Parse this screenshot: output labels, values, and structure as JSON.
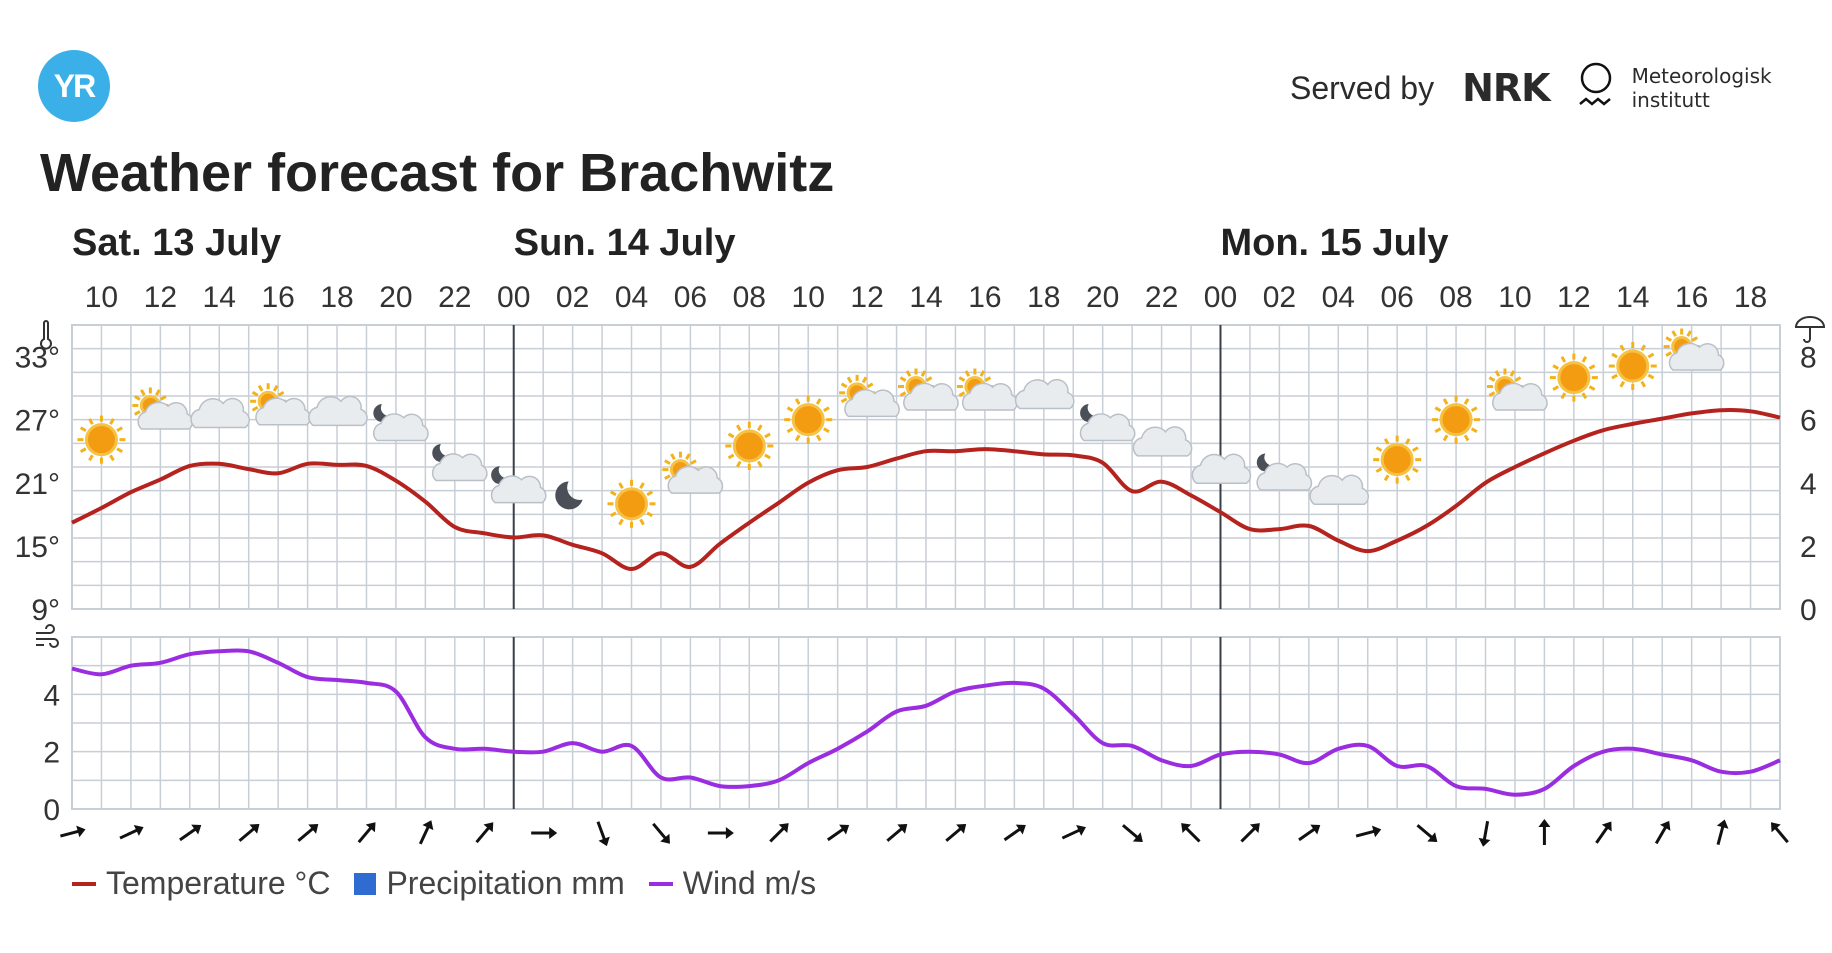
{
  "brand": {
    "logo_text": "YR",
    "served_by": "Served by",
    "nrk_logo_text": "NRK",
    "met_line1": "Meteorologisk",
    "met_line2": "institutt"
  },
  "title": "Weather forecast for Brachwitz",
  "colors": {
    "temperature": "#b5231f",
    "precipitation": "#2f6bd0",
    "wind": "#9b2de0",
    "grid": "#c8ced6",
    "day_line": "#3a3f4a",
    "logo": "#3bb0e8"
  },
  "days": [
    {
      "label": "Sat. 13 July",
      "start_hour": 9
    },
    {
      "label": "Sun. 14 July",
      "start_hour": 24
    },
    {
      "label": "Mon. 15 July",
      "start_hour": 48
    }
  ],
  "legend": [
    {
      "label": "Temperature °C",
      "series": "temperature"
    },
    {
      "label": "Precipitation mm",
      "series": "precipitation"
    },
    {
      "label": "Wind m/s",
      "series": "wind"
    }
  ],
  "chart_data": [
    {
      "type": "line",
      "x_unit": "hours after Sat. 13 July 00:00",
      "x_range": [
        9,
        67
      ],
      "x_tick_labels": [
        "10",
        "12",
        "14",
        "16",
        "18",
        "20",
        "22",
        "00",
        "02",
        "04",
        "06",
        "08",
        "10",
        "12",
        "14",
        "16",
        "18",
        "20",
        "22",
        "00",
        "02",
        "04",
        "06",
        "08",
        "10",
        "12",
        "14",
        "16",
        "18"
      ],
      "x_tick_hours": [
        10,
        12,
        14,
        16,
        18,
        20,
        22,
        24,
        26,
        28,
        30,
        32,
        34,
        36,
        38,
        40,
        42,
        44,
        46,
        48,
        50,
        52,
        54,
        56,
        58,
        60,
        62,
        64,
        66
      ],
      "y_left": {
        "unit": "°C",
        "ticks": [
          "33°",
          "27°",
          "21°",
          "15°",
          "9°"
        ],
        "tick_values": [
          33,
          27,
          21,
          15,
          9
        ],
        "range": [
          9,
          36
        ]
      },
      "y_right": {
        "unit": "mm",
        "ticks": [
          "8",
          "6",
          "4",
          "2",
          "0"
        ],
        "tick_values": [
          8,
          6,
          4,
          2,
          0
        ],
        "range": [
          0,
          9
        ]
      },
      "series": [
        {
          "name": "Temperature °C",
          "axis": "left",
          "x": [
            9,
            10,
            11,
            12,
            13,
            14,
            15,
            16,
            17,
            18,
            19,
            20,
            21,
            22,
            23,
            24,
            25,
            26,
            27,
            28,
            29,
            30,
            31,
            32,
            33,
            34,
            35,
            36,
            37,
            38,
            39,
            40,
            41,
            42,
            43,
            44,
            45,
            46,
            47,
            48,
            49,
            50,
            51,
            52,
            53,
            54,
            55,
            56,
            57,
            58,
            59,
            60,
            61,
            62,
            63,
            64,
            65,
            66,
            67
          ],
          "y": [
            17.2,
            18.6,
            20.1,
            21.3,
            22.6,
            22.8,
            22.3,
            21.9,
            22.8,
            22.7,
            22.6,
            21.2,
            19.2,
            16.8,
            16.2,
            15.8,
            16.0,
            15.1,
            14.3,
            12.8,
            14.3,
            13.0,
            15.2,
            17.2,
            19.1,
            21.0,
            22.2,
            22.5,
            23.3,
            24.0,
            24.0,
            24.2,
            24.0,
            23.7,
            23.6,
            22.9,
            20.2,
            21.1,
            19.8,
            18.2,
            16.6,
            16.6,
            16.9,
            15.5,
            14.5,
            15.5,
            16.9,
            18.8,
            21.0,
            22.5,
            23.8,
            25.0,
            26.0,
            26.6,
            27.1,
            27.6,
            27.9,
            27.8,
            27.2
          ]
        },
        {
          "name": "Precipitation mm",
          "axis": "right",
          "x": [],
          "y": []
        }
      ],
      "weather_symbols": [
        {
          "hour": 10,
          "icon": "clear-sky-day-icon",
          "temp_pos": 25.1
        },
        {
          "hour": 12,
          "icon": "partly-cloudy-day-icon",
          "temp_pos": 27.4
        },
        {
          "hour": 14,
          "icon": "cloudy-icon",
          "temp_pos": 27.4
        },
        {
          "hour": 16,
          "icon": "partly-cloudy-day-icon",
          "temp_pos": 27.8
        },
        {
          "hour": 18,
          "icon": "cloudy-icon",
          "temp_pos": 27.6
        },
        {
          "hour": 20,
          "icon": "partly-cloudy-night-icon",
          "temp_pos": 26.3
        },
        {
          "hour": 22,
          "icon": "partly-cloudy-night-icon",
          "temp_pos": 22.5
        },
        {
          "hour": 24,
          "icon": "partly-cloudy-night-icon",
          "temp_pos": 20.4
        },
        {
          "hour": 26,
          "icon": "clear-sky-night-icon",
          "temp_pos": 19.8
        },
        {
          "hour": 28,
          "icon": "clear-sky-day-icon",
          "temp_pos": 19.0
        },
        {
          "hour": 30,
          "icon": "partly-cloudy-day-icon",
          "temp_pos": 21.3
        },
        {
          "hour": 32,
          "icon": "clear-sky-day-icon",
          "temp_pos": 24.5
        },
        {
          "hour": 34,
          "icon": "clear-sky-day-icon",
          "temp_pos": 27.0
        },
        {
          "hour": 36,
          "icon": "partly-cloudy-day-icon",
          "temp_pos": 28.6
        },
        {
          "hour": 38,
          "icon": "partly-cloudy-day-icon",
          "temp_pos": 29.2
        },
        {
          "hour": 40,
          "icon": "partly-cloudy-day-icon",
          "temp_pos": 29.2
        },
        {
          "hour": 42,
          "icon": "cloudy-icon",
          "temp_pos": 29.2
        },
        {
          "hour": 44,
          "icon": "partly-cloudy-night-icon",
          "temp_pos": 26.3
        },
        {
          "hour": 46,
          "icon": "cloudy-icon",
          "temp_pos": 24.7
        },
        {
          "hour": 48,
          "icon": "cloudy-icon",
          "temp_pos": 22.1
        },
        {
          "hour": 50,
          "icon": "partly-cloudy-night-icon",
          "temp_pos": 21.6
        },
        {
          "hour": 52,
          "icon": "cloudy-icon",
          "temp_pos": 20.1
        },
        {
          "hour": 54,
          "icon": "clear-sky-day-icon",
          "temp_pos": 23.2
        },
        {
          "hour": 56,
          "icon": "clear-sky-day-icon",
          "temp_pos": 27.0
        },
        {
          "hour": 58,
          "icon": "partly-cloudy-day-icon",
          "temp_pos": 29.2
        },
        {
          "hour": 60,
          "icon": "clear-sky-day-icon",
          "temp_pos": 31.0
        },
        {
          "hour": 62,
          "icon": "clear-sky-day-icon",
          "temp_pos": 32.1
        },
        {
          "hour": 64,
          "icon": "partly-cloudy-day-icon",
          "temp_pos": 33.0
        }
      ],
      "grid": true
    },
    {
      "type": "line",
      "x_unit": "hours after Sat. 13 July 00:00",
      "x_range": [
        9,
        67
      ],
      "y_left": {
        "unit": "m/s",
        "ticks": [
          "4",
          "2",
          "0"
        ],
        "tick_values": [
          4,
          2,
          0
        ],
        "range": [
          0,
          6
        ]
      },
      "series": [
        {
          "name": "Wind m/s",
          "x": [
            9,
            10,
            11,
            12,
            13,
            14,
            15,
            16,
            17,
            18,
            19,
            20,
            21,
            22,
            23,
            24,
            25,
            26,
            27,
            28,
            29,
            30,
            31,
            32,
            33,
            34,
            35,
            36,
            37,
            38,
            39,
            40,
            41,
            42,
            43,
            44,
            45,
            46,
            47,
            48,
            49,
            50,
            51,
            52,
            53,
            54,
            55,
            56,
            57,
            58,
            59,
            60,
            61,
            62,
            63,
            64,
            65,
            66,
            67
          ],
          "y": [
            4.9,
            4.7,
            5.0,
            5.1,
            5.4,
            5.5,
            5.5,
            5.1,
            4.6,
            4.5,
            4.4,
            4.1,
            2.5,
            2.1,
            2.1,
            2.0,
            2.0,
            2.3,
            2.0,
            2.2,
            1.1,
            1.1,
            0.8,
            0.8,
            1.0,
            1.6,
            2.1,
            2.7,
            3.4,
            3.6,
            4.1,
            4.3,
            4.4,
            4.2,
            3.3,
            2.3,
            2.2,
            1.7,
            1.5,
            1.9,
            2.0,
            1.9,
            1.6,
            2.1,
            2.2,
            1.5,
            1.5,
            0.8,
            0.7,
            0.5,
            0.7,
            1.5,
            2.0,
            2.1,
            1.9,
            1.7,
            1.3,
            1.3,
            1.7
          ]
        }
      ],
      "wind_direction_arrows": [
        {
          "hour": 9,
          "rotation_deg": 75
        },
        {
          "hour": 11,
          "rotation_deg": 65
        },
        {
          "hour": 13,
          "rotation_deg": 55
        },
        {
          "hour": 15,
          "rotation_deg": 50
        },
        {
          "hour": 17,
          "rotation_deg": 50
        },
        {
          "hour": 19,
          "rotation_deg": 40
        },
        {
          "hour": 21,
          "rotation_deg": 25
        },
        {
          "hour": 23,
          "rotation_deg": 40
        },
        {
          "hour": 25,
          "rotation_deg": 90
        },
        {
          "hour": 27,
          "rotation_deg": 160
        },
        {
          "hour": 29,
          "rotation_deg": 140
        },
        {
          "hour": 31,
          "rotation_deg": 90
        },
        {
          "hour": 33,
          "rotation_deg": 45
        },
        {
          "hour": 35,
          "rotation_deg": 55
        },
        {
          "hour": 37,
          "rotation_deg": 50
        },
        {
          "hour": 39,
          "rotation_deg": 50
        },
        {
          "hour": 41,
          "rotation_deg": 55
        },
        {
          "hour": 43,
          "rotation_deg": 65
        },
        {
          "hour": 45,
          "rotation_deg": 130
        },
        {
          "hour": 47,
          "rotation_deg": 315
        },
        {
          "hour": 49,
          "rotation_deg": 45
        },
        {
          "hour": 51,
          "rotation_deg": 55
        },
        {
          "hour": 53,
          "rotation_deg": 75
        },
        {
          "hour": 55,
          "rotation_deg": 130
        },
        {
          "hour": 57,
          "rotation_deg": 190
        },
        {
          "hour": 59,
          "rotation_deg": 0
        },
        {
          "hour": 61,
          "rotation_deg": 35
        },
        {
          "hour": 63,
          "rotation_deg": 30
        },
        {
          "hour": 65,
          "rotation_deg": 15
        },
        {
          "hour": 67,
          "rotation_deg": 320
        }
      ],
      "grid": true
    }
  ]
}
